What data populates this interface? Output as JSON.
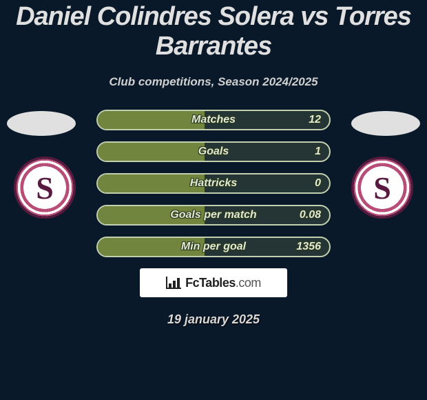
{
  "title": "Daniel Colindres Solera vs Torres Barrantes",
  "subtitle": "Club competitions, Season 2024/2025",
  "date": "19 january 2025",
  "brand": {
    "name": "FcTables",
    "suffix": ".com"
  },
  "colors": {
    "page_bg": "#0a1929",
    "title_color": "#e0e0e0",
    "bar_border": "#c3d0b0",
    "bar_fill": "#71853f",
    "badge_primary": "#5a1a40",
    "badge_accent": "#b84d77",
    "ellipse_bg": "#e0e0e0",
    "stat_text": "#e2e8d8"
  },
  "fill_pct": 46,
  "stats": [
    {
      "label": "Matches",
      "value": "12"
    },
    {
      "label": "Goals",
      "value": "1"
    },
    {
      "label": "Hattricks",
      "value": "0"
    },
    {
      "label": "Goals per match",
      "value": "0.08"
    },
    {
      "label": "Min per goal",
      "value": "1356"
    }
  ]
}
